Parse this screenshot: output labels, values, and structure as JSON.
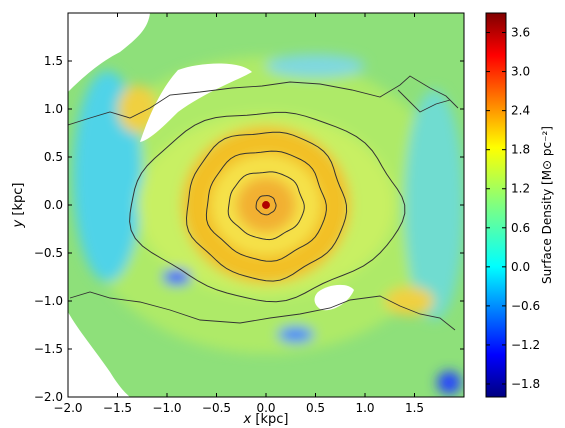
{
  "chart_data": {
    "type": "heatmap",
    "title": "",
    "xlabel": "x [kpc]",
    "xlabel_var": "x",
    "xlabel_unit": "[kpc]",
    "ylabel": "y [kpc]",
    "ylabel_var": "y",
    "ylabel_unit": "[kpc]",
    "xlim": [
      -2.0,
      2.0
    ],
    "ylim": [
      -2.0,
      2.0
    ],
    "x_ticks": [
      {
        "value": -2.0,
        "label": "−2.0"
      },
      {
        "value": -1.5,
        "label": "−1.5"
      },
      {
        "value": -1.0,
        "label": "−1.0"
      },
      {
        "value": -0.5,
        "label": "−0.5"
      },
      {
        "value": 0.0,
        "label": "0.0"
      },
      {
        "value": 0.5,
        "label": "0.5"
      },
      {
        "value": 1.0,
        "label": "1.0"
      },
      {
        "value": 1.5,
        "label": "1.5"
      }
    ],
    "y_ticks": [
      {
        "value": -2.0,
        "label": "−2.0"
      },
      {
        "value": -1.5,
        "label": "−1.5"
      },
      {
        "value": -1.0,
        "label": "−1.0"
      },
      {
        "value": -0.5,
        "label": "−0.5"
      },
      {
        "value": 0.0,
        "label": "0.0"
      },
      {
        "value": 0.5,
        "label": "0.5"
      },
      {
        "value": 1.0,
        "label": "1.0"
      },
      {
        "value": 1.5,
        "label": "1.5"
      }
    ],
    "colorbar": {
      "label": "Surface Density [M⊙ pc⁻²]",
      "range": [
        -2.0,
        3.9
      ],
      "ticks": [
        {
          "value": 3.6,
          "label": "3.6"
        },
        {
          "value": 3.0,
          "label": "3.0"
        },
        {
          "value": 2.4,
          "label": "2.4"
        },
        {
          "value": 1.8,
          "label": "1.8"
        },
        {
          "value": 1.2,
          "label": "1.2"
        },
        {
          "value": 0.6,
          "label": "0.6"
        },
        {
          "value": 0.0,
          "label": "0.0"
        },
        {
          "value": -0.6,
          "label": "−0.6"
        },
        {
          "value": -1.2,
          "label": "−1.2"
        },
        {
          "value": -1.8,
          "label": "−1.8"
        }
      ],
      "colormap": "jet"
    },
    "contours": [
      {
        "shape": "nucleus",
        "rx": 0.1,
        "ry": 0.1
      },
      {
        "shape": "ring",
        "rx": 0.38,
        "ry": 0.35
      },
      {
        "shape": "ring",
        "rx": 0.6,
        "ry": 0.57
      },
      {
        "shape": "ring",
        "rx": 0.8,
        "ry": 0.77
      },
      {
        "shape": "oval",
        "rx": 1.38,
        "ry": 0.98
      }
    ],
    "blank_regions": [
      {
        "where": "top-left",
        "cx": -1.75,
        "cy": 1.8
      },
      {
        "where": "upper-left spiral gap",
        "cx": -0.62,
        "cy": 1.02
      },
      {
        "where": "lower-right",
        "cx": 0.68,
        "cy": -0.9
      },
      {
        "where": "bottom-left",
        "cx": -1.85,
        "cy": -1.4
      }
    ],
    "central_peak": {
      "x": 0.0,
      "y": 0.0,
      "value": 3.8
    },
    "grid": false
  }
}
